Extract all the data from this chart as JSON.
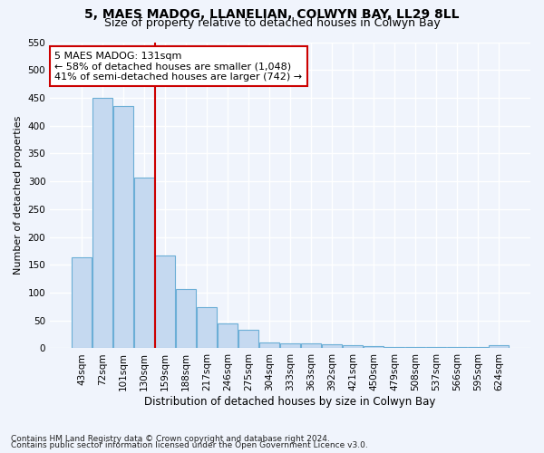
{
  "title1": "5, MAES MADOG, LLANELIAN, COLWYN BAY, LL29 8LL",
  "title2": "Size of property relative to detached houses in Colwyn Bay",
  "xlabel": "Distribution of detached houses by size in Colwyn Bay",
  "ylabel": "Number of detached properties",
  "categories": [
    "43sqm",
    "72sqm",
    "101sqm",
    "130sqm",
    "159sqm",
    "188sqm",
    "217sqm",
    "246sqm",
    "275sqm",
    "304sqm",
    "333sqm",
    "363sqm",
    "392sqm",
    "421sqm",
    "450sqm",
    "479sqm",
    "508sqm",
    "537sqm",
    "566sqm",
    "595sqm",
    "624sqm"
  ],
  "values": [
    163,
    450,
    435,
    307,
    167,
    106,
    74,
    45,
    33,
    11,
    9,
    9,
    8,
    5,
    4,
    3,
    3,
    3,
    2,
    2,
    5
  ],
  "bar_color": "#c5d9f0",
  "bar_edge_color": "#6baed6",
  "vline_color": "#cc0000",
  "annotation_text": "5 MAES MADOG: 131sqm\n← 58% of detached houses are smaller (1,048)\n41% of semi-detached houses are larger (742) →",
  "annotation_box_facecolor": "#ffffff",
  "annotation_box_edgecolor": "#cc0000",
  "ylim": [
    0,
    550
  ],
  "yticks": [
    0,
    50,
    100,
    150,
    200,
    250,
    300,
    350,
    400,
    450,
    500,
    550
  ],
  "footer1": "Contains HM Land Registry data © Crown copyright and database right 2024.",
  "footer2": "Contains public sector information licensed under the Open Government Licence v3.0.",
  "bg_color": "#f0f4fc",
  "grid_color": "#ffffff",
  "title1_fontsize": 10,
  "title2_fontsize": 9,
  "xlabel_fontsize": 8.5,
  "ylabel_fontsize": 8,
  "tick_fontsize": 7.5,
  "annotation_fontsize": 8,
  "footer_fontsize": 6.5,
  "vline_xindex": 3
}
